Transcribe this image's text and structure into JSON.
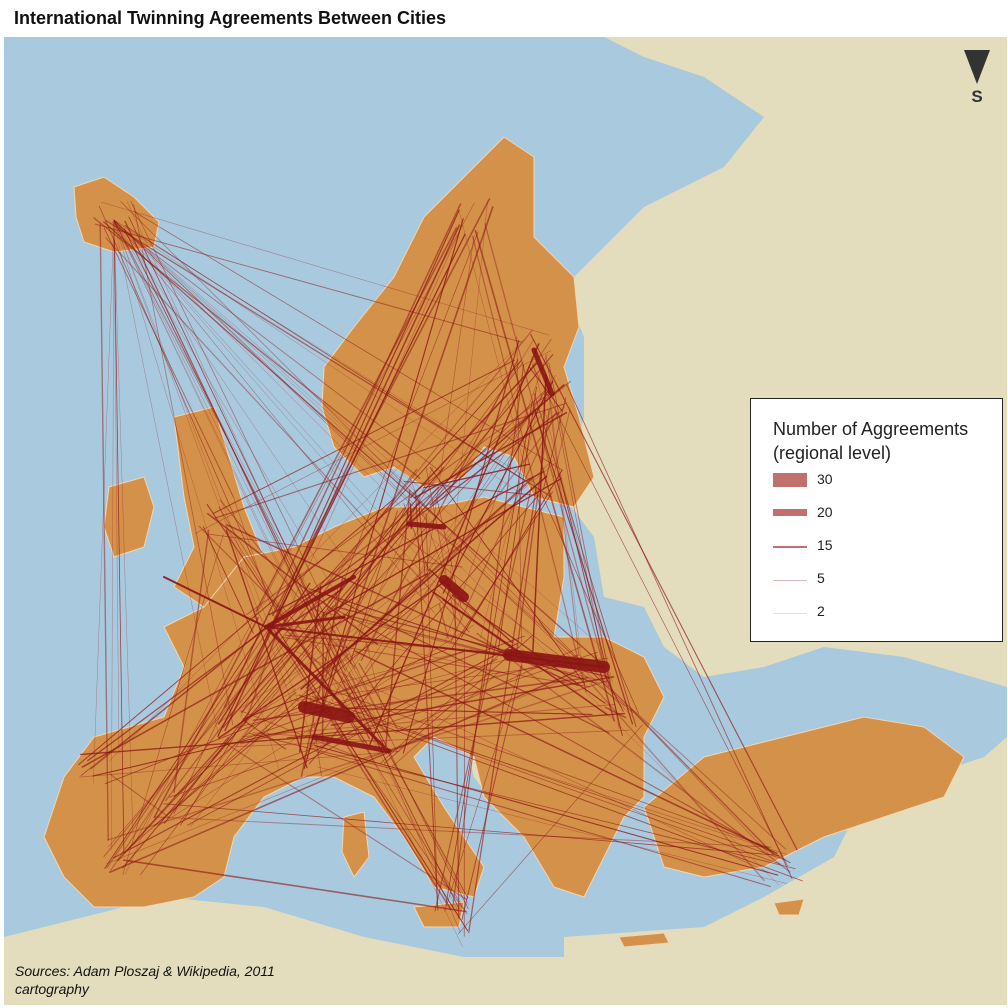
{
  "title": "International Twinning Agreements Between Cities",
  "compass": {
    "label": "S",
    "icon": "compass-arrow-icon"
  },
  "legend": {
    "title_line1": "Number of Aggreements",
    "title_line2": "(regional level)",
    "items": [
      {
        "label": "30",
        "value": 30
      },
      {
        "label": "20",
        "value": 20
      },
      {
        "label": "15",
        "value": 15
      },
      {
        "label": "5",
        "value": 5
      },
      {
        "label": "2",
        "value": 2
      }
    ]
  },
  "source": {
    "line1": "Sources: Adam Ploszaj & Wikipedia, 2011",
    "line2": "cartography"
  },
  "colors": {
    "sea": "#a9c9de",
    "land_other": "#e3dcbd",
    "land_eu": "#d4914a",
    "borders": "#f0d6b4",
    "flow": "#8b1414",
    "legend_swatch": "#c0706d"
  }
}
